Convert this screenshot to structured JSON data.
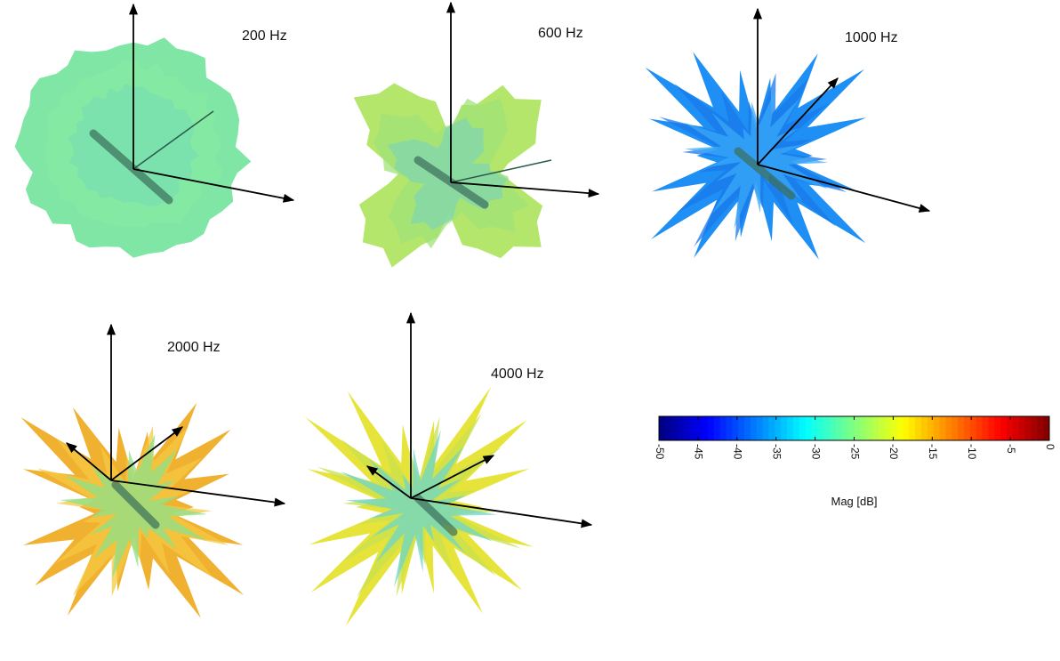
{
  "panels": [
    {
      "label": "200 Hz"
    },
    {
      "label": "600 Hz"
    },
    {
      "label": "1000 Hz"
    },
    {
      "label": "2000 Hz"
    },
    {
      "label": "4000 Hz"
    }
  ],
  "colorbar": {
    "lim": [
      -50,
      0
    ],
    "ticks": [
      -50,
      -45,
      -40,
      -35,
      -30,
      -25,
      -20,
      -15,
      -10,
      -5,
      0
    ],
    "label": "Mag [dB]",
    "colormap": "jet"
  }
}
